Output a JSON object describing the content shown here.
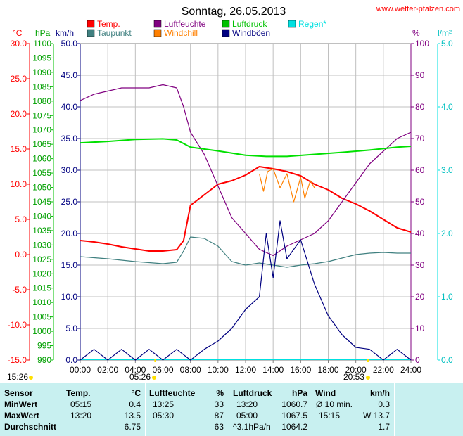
{
  "title": "Sonntag, 26.05.2013",
  "website": "www.wetter-pfalzen.com",
  "units": {
    "temp": "°C",
    "hpa": "hPa",
    "kmh": "km/h",
    "pct": "%",
    "rain": "l/m²"
  },
  "legend": [
    {
      "label": "Temp.",
      "color": "#ff0000"
    },
    {
      "label": "Luftfeuchte",
      "color": "#800080"
    },
    {
      "label": "Luftdruck",
      "color": "#00c000"
    },
    {
      "label": "Regen*",
      "color": "#00e0e0"
    },
    {
      "label": "Taupunkt",
      "color": "#408080"
    },
    {
      "label": "Windchill",
      "color": "#ff8000"
    },
    {
      "label": "Windböen",
      "color": "#000080"
    }
  ],
  "sun": {
    "sunrise": "05:26",
    "sunset": "20:53",
    "left_time": "15:26"
  },
  "chart_data": {
    "type": "line",
    "x_ticks": [
      "00:00",
      "02:00",
      "04:00",
      "06:00",
      "08:00",
      "10:00",
      "12:00",
      "14:00",
      "16:00",
      "18:00",
      "20:00",
      "22:00",
      "24:00"
    ],
    "axes": {
      "temp": {
        "label": "°C",
        "ylim": [
          -15,
          30
        ],
        "ticks": [
          "30.0",
          "25.0",
          "20.0",
          "15.0",
          "10.0",
          "5.0",
          "0.0",
          "-5.0",
          "-10.0",
          "-15.0"
        ]
      },
      "pressure": {
        "label": "hPa",
        "ylim": [
          990,
          1100
        ],
        "ticks": [
          "1100",
          "1095",
          "1090",
          "1085",
          "1080",
          "1075",
          "1070",
          "1065",
          "1060",
          "1055",
          "1050",
          "1045",
          "1040",
          "1035",
          "1030",
          "1025",
          "1020",
          "1015",
          "1010",
          "1005",
          "1000",
          "995",
          "990"
        ]
      },
      "wind": {
        "label": "km/h",
        "ylim": [
          0,
          50
        ],
        "ticks": [
          "50.0",
          "45.0",
          "40.0",
          "35.0",
          "30.0",
          "25.0",
          "20.0",
          "15.0",
          "10.0",
          "5.0",
          "0.0"
        ]
      },
      "humidity": {
        "label": "%",
        "ylim": [
          0,
          100
        ],
        "ticks": [
          "100",
          "90",
          "80",
          "70",
          "60",
          "50",
          "40",
          "30",
          "20",
          "10",
          "0"
        ]
      },
      "rain": {
        "label": "l/m²",
        "ylim": [
          0,
          5
        ],
        "ticks": [
          "5.0",
          "4.0",
          "3.0",
          "2.0",
          "1.0",
          "0.0"
        ]
      }
    },
    "series": [
      {
        "name": "Temp.",
        "axis": "temp",
        "color": "#ff0000",
        "points": [
          [
            0,
            2
          ],
          [
            1,
            1.8
          ],
          [
            2,
            1.5
          ],
          [
            3,
            1.1
          ],
          [
            4,
            0.8
          ],
          [
            5,
            0.5
          ],
          [
            6,
            0.5
          ],
          [
            7,
            0.7
          ],
          [
            7.5,
            2
          ],
          [
            8,
            7
          ],
          [
            9,
            8.5
          ],
          [
            10,
            10
          ],
          [
            11,
            10.5
          ],
          [
            12,
            11.3
          ],
          [
            13,
            12.5
          ],
          [
            14,
            12.2
          ],
          [
            15,
            11.8
          ],
          [
            16,
            11.2
          ],
          [
            17,
            10
          ],
          [
            18,
            9.2
          ],
          [
            19,
            8
          ],
          [
            20,
            7.2
          ],
          [
            21,
            6.2
          ],
          [
            22,
            5
          ],
          [
            23,
            3.8
          ],
          [
            24,
            3.2
          ]
        ]
      },
      {
        "name": "Luftfeuchte",
        "axis": "humidity",
        "color": "#800080",
        "points": [
          [
            0,
            82
          ],
          [
            1,
            84
          ],
          [
            2,
            85
          ],
          [
            3,
            86
          ],
          [
            4,
            86
          ],
          [
            5,
            86
          ],
          [
            6,
            87
          ],
          [
            7,
            86
          ],
          [
            7.5,
            80
          ],
          [
            8,
            72
          ],
          [
            9,
            65
          ],
          [
            10,
            55
          ],
          [
            11,
            45
          ],
          [
            12,
            40
          ],
          [
            13,
            35
          ],
          [
            14,
            33
          ],
          [
            15,
            36
          ],
          [
            16,
            38
          ],
          [
            17,
            40
          ],
          [
            18,
            44
          ],
          [
            19,
            50
          ],
          [
            20,
            56
          ],
          [
            21,
            62
          ],
          [
            22,
            66
          ],
          [
            23,
            70
          ],
          [
            24,
            72
          ]
        ]
      },
      {
        "name": "Luftdruck",
        "axis": "pressure",
        "color": "#00e000",
        "points": [
          [
            0,
            1065.5
          ],
          [
            2,
            1066
          ],
          [
            4,
            1066.7
          ],
          [
            6,
            1066.9
          ],
          [
            7,
            1066.5
          ],
          [
            8,
            1064
          ],
          [
            10,
            1062.7
          ],
          [
            12,
            1061.2
          ],
          [
            13.5,
            1060.8
          ],
          [
            15,
            1060.8
          ],
          [
            17,
            1061.5
          ],
          [
            19,
            1062.2
          ],
          [
            21,
            1063
          ],
          [
            23,
            1064
          ],
          [
            24,
            1064.3
          ]
        ]
      },
      {
        "name": "Taupunkt",
        "axis": "temp",
        "color": "#408080",
        "points": [
          [
            0,
            -0.3
          ],
          [
            2,
            -0.6
          ],
          [
            4,
            -1
          ],
          [
            6,
            -1.3
          ],
          [
            7,
            -1.1
          ],
          [
            7.5,
            0.5
          ],
          [
            8,
            2.5
          ],
          [
            9,
            2.3
          ],
          [
            10,
            1.2
          ],
          [
            11,
            -1
          ],
          [
            12,
            -1.5
          ],
          [
            13,
            -1.2
          ],
          [
            14,
            -1.5
          ],
          [
            15,
            -1.8
          ],
          [
            16,
            -1.5
          ],
          [
            17,
            -1.3
          ],
          [
            18,
            -1
          ],
          [
            19,
            -0.5
          ],
          [
            20,
            0
          ],
          [
            21,
            0.2
          ],
          [
            22,
            0.3
          ],
          [
            23,
            0.2
          ],
          [
            24,
            0.2
          ]
        ]
      },
      {
        "name": "Windchill",
        "axis": "temp",
        "color": "#ff8000",
        "points": [
          [
            13,
            11.5
          ],
          [
            13.3,
            9
          ],
          [
            13.6,
            11.8
          ],
          [
            14,
            12.2
          ],
          [
            14.5,
            9.5
          ],
          [
            15,
            11.5
          ],
          [
            15.5,
            7.5
          ],
          [
            16,
            11
          ],
          [
            16.3,
            8
          ],
          [
            16.7,
            10.5
          ],
          [
            17,
            9.5
          ]
        ]
      },
      {
        "name": "Windböen",
        "axis": "wind",
        "color": "#000080",
        "points": [
          [
            0,
            0
          ],
          [
            1,
            1.7
          ],
          [
            2,
            0
          ],
          [
            3,
            1.7
          ],
          [
            4,
            0
          ],
          [
            5,
            1.7
          ],
          [
            6,
            0
          ],
          [
            7,
            1.7
          ],
          [
            8,
            0
          ],
          [
            9,
            1.7
          ],
          [
            10,
            3
          ],
          [
            11,
            5
          ],
          [
            12,
            8
          ],
          [
            13,
            10
          ],
          [
            13.5,
            20
          ],
          [
            14,
            13
          ],
          [
            14.5,
            22
          ],
          [
            15,
            16
          ],
          [
            16,
            19
          ],
          [
            17,
            12
          ],
          [
            18,
            7
          ],
          [
            19,
            4
          ],
          [
            20,
            2
          ],
          [
            21,
            1.7
          ],
          [
            22,
            0
          ],
          [
            23,
            1.7
          ],
          [
            24,
            0
          ]
        ]
      }
    ]
  },
  "stats": {
    "headers": {
      "sensor": "Sensor",
      "temp": "Temp.",
      "temp_unit": "°C",
      "hum": "Luftfeuchte",
      "hum_unit": "%",
      "press": "Luftdruck",
      "press_unit": "hPa",
      "wind": "Wind",
      "wind_unit": "km/h"
    },
    "rows": [
      {
        "label": "MinWert",
        "t_time": "05:15",
        "t_val": "0.4",
        "h_time": "13:25",
        "h_val": "33",
        "p_time": "13:20",
        "p_val": "1060.7",
        "w_time": "Ø 10 min.",
        "w_val": "0.3"
      },
      {
        "label": "MaxWert",
        "t_time": "13:20",
        "t_val": "13.5",
        "h_time": "05:30",
        "h_val": "87",
        "p_time": "05:00",
        "p_val": "1067.5",
        "w_time": "15:15",
        "w_val": "W 13.7"
      },
      {
        "label": "Durchschnitt",
        "t_time": "",
        "t_val": "6.75",
        "h_time": "",
        "h_val": "63",
        "p_time": "^3.1hPa/h",
        "p_val": "1064.2",
        "w_time": "",
        "w_val": "1.7"
      }
    ]
  }
}
